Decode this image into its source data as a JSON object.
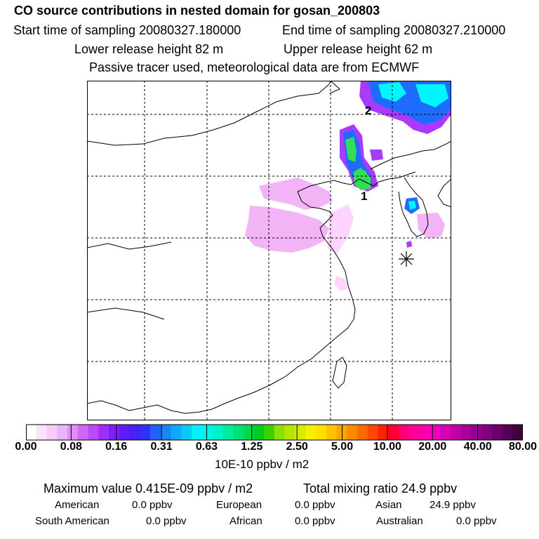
{
  "header": {
    "title": "CO  source contributions in nested domain for gosan_200803",
    "start_time": "Start time of sampling 20080327.180000",
    "end_time": "End time of sampling 20080327.210000",
    "lower_height": "Lower release height   82 m",
    "upper_height": "Upper release height   62 m",
    "tracer_note": "Passive tracer used, meteorological data are from ECMWF"
  },
  "map": {
    "label_1": "1",
    "label_2": "2",
    "receptor_icon": "asterisk-marker",
    "colors": {
      "frame": "#000000",
      "grid": "#000000",
      "coast": "#000000"
    },
    "plume_levels": [
      {
        "name": "light",
        "color": "#f2b3f7"
      },
      {
        "name": "pale",
        "color": "#ffd5ff"
      },
      {
        "name": "violet",
        "color": "#a83bff"
      },
      {
        "name": "blue",
        "color": "#1e6bff"
      },
      {
        "name": "cyan",
        "color": "#00f6ff"
      },
      {
        "name": "green",
        "color": "#33dd55"
      },
      {
        "name": "yellow",
        "color": "#ffe800"
      }
    ]
  },
  "colorbar": {
    "ticks": [
      "0.00",
      "0.08",
      "0.16",
      "0.31",
      "0.63",
      "1.25",
      "2.50",
      "5.00",
      "10.00",
      "20.00",
      "40.00",
      "80.00"
    ],
    "colors": [
      "#ffffff",
      "#fbe3fd",
      "#f5ccfb",
      "#eeb4f9",
      "#e08ff7",
      "#cc6af7",
      "#b84af8",
      "#a12df8",
      "#7a20f8",
      "#5f1bf8",
      "#4a1ff8",
      "#3030f8",
      "#1f62f8",
      "#1c83f8",
      "#14a6f8",
      "#0ac8f8",
      "#00f0ff",
      "#00f5e8",
      "#00f2c8",
      "#00eaa5",
      "#00e07a",
      "#00d84e",
      "#00cd22",
      "#3ad300",
      "#8ee000",
      "#b6e600",
      "#d9ec00",
      "#f5f000",
      "#ffdf00",
      "#ffc200",
      "#ffa500",
      "#ff8800",
      "#ff6a00",
      "#ff4800",
      "#ff2400",
      "#ff0030",
      "#ff0070",
      "#ff0099",
      "#f800b0",
      "#ee00c0",
      "#d800b4",
      "#c200a8",
      "#ac009c",
      "#960090",
      "#80007e",
      "#6a006a",
      "#550055",
      "#3f003f"
    ],
    "unit": "10E-10 ppbv / m2"
  },
  "summary": {
    "max_value": "Maximum value  0.415E-09 ppbv / m2",
    "total_mixing": "Total mixing ratio       24.9 ppbv",
    "american_label": "American",
    "american_value": "0.0 ppbv",
    "european_label": "European",
    "european_value": "0.0 ppbv",
    "asian_label": "Asian",
    "asian_value": "24.9 ppbv",
    "south_american_label": "South American",
    "south_american_value": "0.0 ppbv",
    "african_label": "African",
    "african_value": "0.0 ppbv",
    "australian_label": "Australian",
    "australian_value": "0.0 ppbv"
  }
}
